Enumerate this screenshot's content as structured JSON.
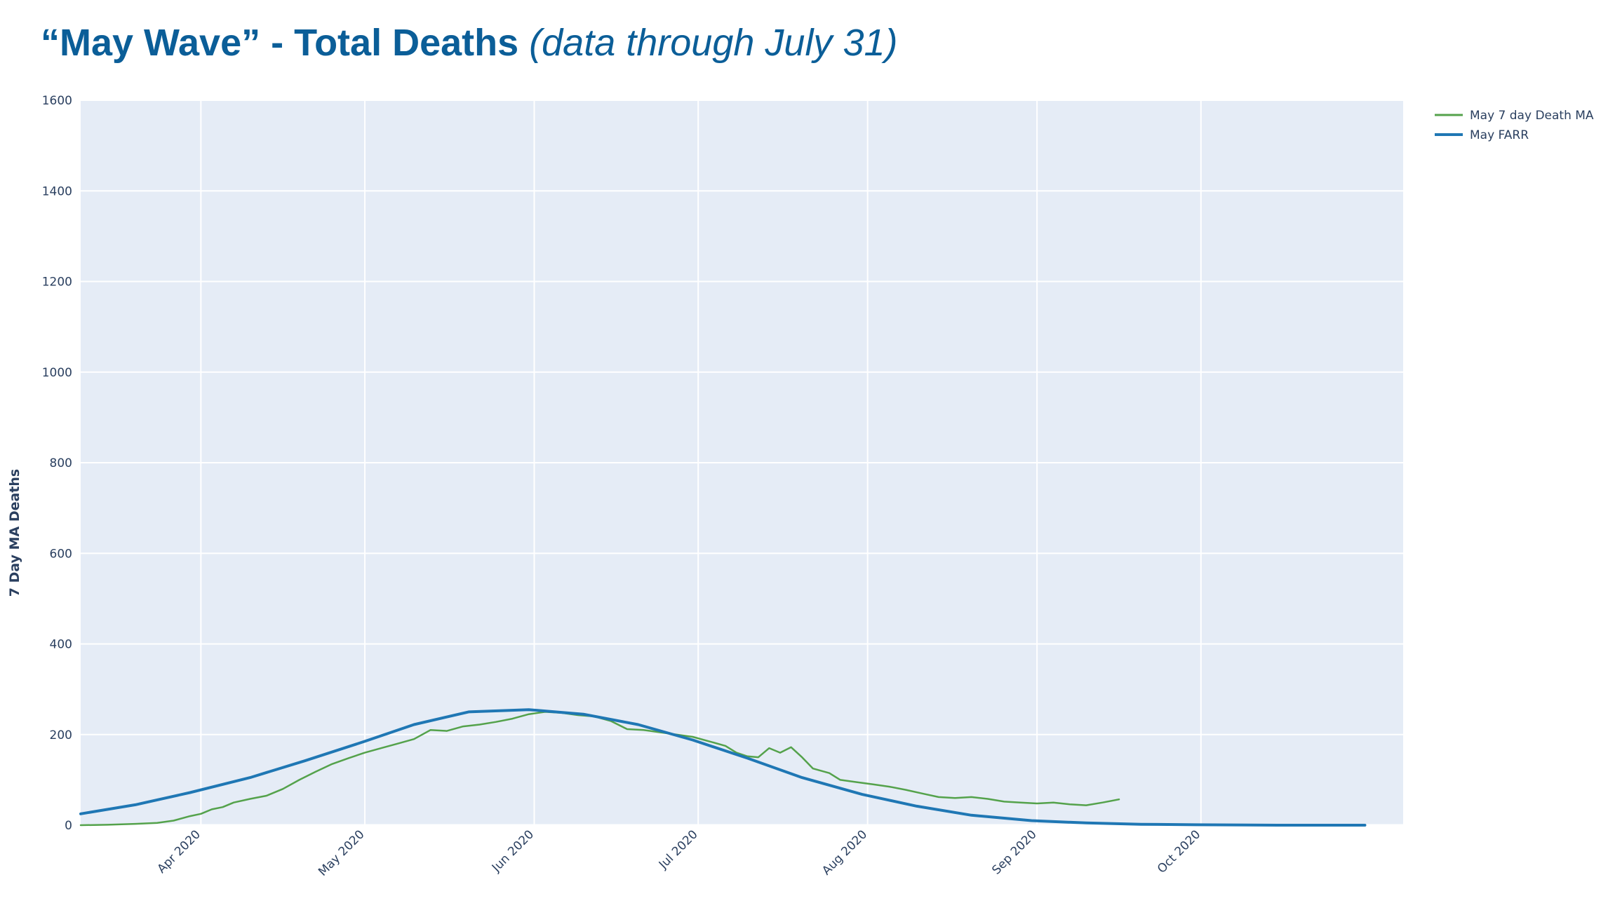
{
  "title": {
    "main": "“May Wave” - Total Deaths",
    "sub": "(data through July 31)"
  },
  "chart_data": {
    "type": "line",
    "ylabel": "7 Day MA Deaths",
    "ylim": [
      0,
      1600
    ],
    "yticks": [
      0,
      200,
      400,
      600,
      800,
      1000,
      1200,
      1400,
      1600
    ],
    "xlim": [
      "2020-03-10",
      "2020-11-07"
    ],
    "xticks": [
      {
        "date": "2020-04-01",
        "label": "Apr 2020"
      },
      {
        "date": "2020-05-01",
        "label": "May 2020"
      },
      {
        "date": "2020-06-01",
        "label": "Jun 2020"
      },
      {
        "date": "2020-07-01",
        "label": "Jul 2020"
      },
      {
        "date": "2020-08-01",
        "label": "Aug 2020"
      },
      {
        "date": "2020-09-01",
        "label": "Sep 2020"
      },
      {
        "date": "2020-10-01",
        "label": "Oct 2020"
      }
    ],
    "grid": true,
    "legend_position": "top-right",
    "series": [
      {
        "name": "May 7 day Death MA",
        "color": "#54a24b",
        "points": [
          [
            "2020-03-10",
            0
          ],
          [
            "2020-03-15",
            1
          ],
          [
            "2020-03-20",
            3
          ],
          [
            "2020-03-24",
            5
          ],
          [
            "2020-03-27",
            10
          ],
          [
            "2020-03-30",
            20
          ],
          [
            "2020-04-01",
            25
          ],
          [
            "2020-04-03",
            35
          ],
          [
            "2020-04-05",
            40
          ],
          [
            "2020-04-07",
            50
          ],
          [
            "2020-04-10",
            58
          ],
          [
            "2020-04-13",
            65
          ],
          [
            "2020-04-16",
            80
          ],
          [
            "2020-04-19",
            100
          ],
          [
            "2020-04-22",
            118
          ],
          [
            "2020-04-25",
            135
          ],
          [
            "2020-04-28",
            148
          ],
          [
            "2020-05-01",
            160
          ],
          [
            "2020-05-04",
            170
          ],
          [
            "2020-05-07",
            180
          ],
          [
            "2020-05-10",
            190
          ],
          [
            "2020-05-13",
            210
          ],
          [
            "2020-05-16",
            208
          ],
          [
            "2020-05-19",
            218
          ],
          [
            "2020-05-22",
            222
          ],
          [
            "2020-05-25",
            228
          ],
          [
            "2020-05-28",
            235
          ],
          [
            "2020-05-31",
            245
          ],
          [
            "2020-06-03",
            250
          ],
          [
            "2020-06-06",
            248
          ],
          [
            "2020-06-09",
            243
          ],
          [
            "2020-06-12",
            240
          ],
          [
            "2020-06-15",
            230
          ],
          [
            "2020-06-18",
            212
          ],
          [
            "2020-06-21",
            210
          ],
          [
            "2020-06-24",
            205
          ],
          [
            "2020-06-27",
            200
          ],
          [
            "2020-06-30",
            195
          ],
          [
            "2020-07-03",
            185
          ],
          [
            "2020-07-06",
            175
          ],
          [
            "2020-07-08",
            160
          ],
          [
            "2020-07-10",
            152
          ],
          [
            "2020-07-12",
            150
          ],
          [
            "2020-07-14",
            170
          ],
          [
            "2020-07-16",
            160
          ],
          [
            "2020-07-18",
            172
          ],
          [
            "2020-07-20",
            150
          ],
          [
            "2020-07-22",
            125
          ],
          [
            "2020-07-25",
            115
          ],
          [
            "2020-07-27",
            100
          ],
          [
            "2020-07-30",
            95
          ],
          [
            "2020-08-02",
            90
          ],
          [
            "2020-08-05",
            85
          ],
          [
            "2020-08-08",
            78
          ],
          [
            "2020-08-11",
            70
          ],
          [
            "2020-08-14",
            62
          ],
          [
            "2020-08-17",
            60
          ],
          [
            "2020-08-20",
            62
          ],
          [
            "2020-08-23",
            58
          ],
          [
            "2020-08-26",
            52
          ],
          [
            "2020-08-29",
            50
          ],
          [
            "2020-09-01",
            48
          ],
          [
            "2020-09-04",
            50
          ],
          [
            "2020-09-07",
            46
          ],
          [
            "2020-09-10",
            44
          ],
          [
            "2020-09-13",
            50
          ],
          [
            "2020-09-16",
            57
          ]
        ]
      },
      {
        "name": "May FARR",
        "color": "#1f77b4",
        "points": [
          [
            "2020-03-10",
            25
          ],
          [
            "2020-03-20",
            45
          ],
          [
            "2020-03-30",
            72
          ],
          [
            "2020-04-10",
            105
          ],
          [
            "2020-04-20",
            142
          ],
          [
            "2020-05-01",
            185
          ],
          [
            "2020-05-10",
            222
          ],
          [
            "2020-05-20",
            250
          ],
          [
            "2020-05-31",
            255
          ],
          [
            "2020-06-10",
            245
          ],
          [
            "2020-06-20",
            222
          ],
          [
            "2020-06-30",
            188
          ],
          [
            "2020-07-10",
            148
          ],
          [
            "2020-07-20",
            105
          ],
          [
            "2020-07-31",
            68
          ],
          [
            "2020-08-10",
            42
          ],
          [
            "2020-08-20",
            22
          ],
          [
            "2020-08-31",
            10
          ],
          [
            "2020-09-10",
            5
          ],
          [
            "2020-09-20",
            2
          ],
          [
            "2020-09-30",
            1
          ],
          [
            "2020-10-15",
            0
          ],
          [
            "2020-10-31",
            0
          ]
        ]
      }
    ]
  }
}
